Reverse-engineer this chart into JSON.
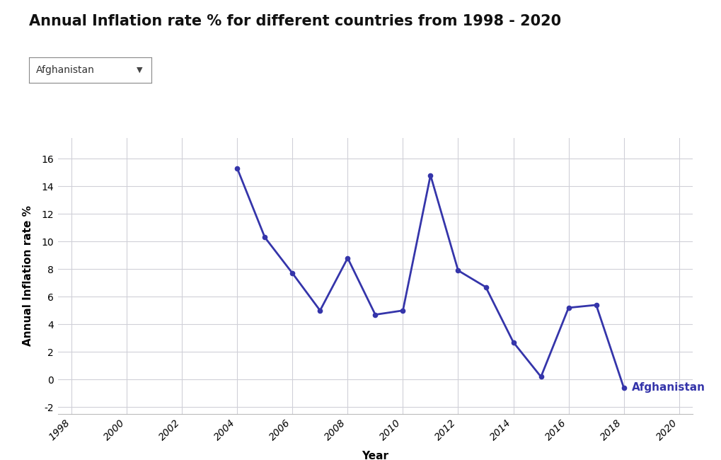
{
  "title": "Annual Inflation rate % for different countries from 1998 - 2020",
  "country_label": "Afghanistan",
  "dropdown_text": "Afghanistan",
  "xlabel": "Year",
  "ylabel": "Annual Inflation rate %",
  "line_color": "#3535aa",
  "label_color": "#3535aa",
  "years": [
    2004,
    2005,
    2006,
    2007,
    2008,
    2009,
    2010,
    2011,
    2012,
    2013,
    2014,
    2015,
    2016,
    2017,
    2018
  ],
  "values": [
    15.3,
    10.3,
    7.7,
    5.0,
    8.8,
    4.7,
    5.0,
    14.8,
    7.9,
    6.7,
    2.7,
    0.2,
    5.2,
    5.4,
    -0.6
  ],
  "ylim": [
    -2.5,
    17.5
  ],
  "xlim": [
    1997.5,
    2020.5
  ],
  "yticks": [
    -2,
    0,
    2,
    4,
    6,
    8,
    10,
    12,
    14,
    16
  ],
  "xticks": [
    1998,
    2000,
    2002,
    2004,
    2006,
    2008,
    2010,
    2012,
    2014,
    2016,
    2018,
    2020
  ],
  "background_color": "#ffffff",
  "grid_color": "#d0d0d8",
  "title_fontsize": 15,
  "axis_label_fontsize": 11,
  "tick_fontsize": 10,
  "line_width": 2.0,
  "marker_size": 4.5
}
